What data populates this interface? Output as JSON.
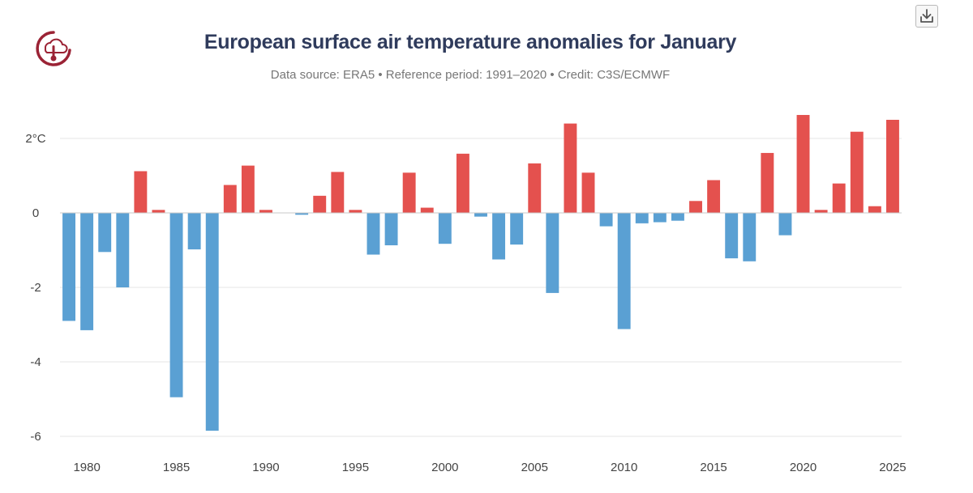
{
  "colors": {
    "positive": "#e4514e",
    "negative": "#5aa0d3",
    "title": "#2f3b5c",
    "logo": "#9b2335"
  },
  "icons": {
    "logo": "thermometer-cloud-icon",
    "download": "download-icon"
  },
  "chart_data": {
    "type": "bar",
    "title": "European surface air temperature anomalies for January",
    "subtitle": "Data source: ERA5 • Reference period: 1991–2020 • Credit: C3S/ECMWF",
    "xlabel": "",
    "ylabel": "",
    "ylim": [
      -6.2,
      2.9
    ],
    "yticks": [
      2,
      0,
      -2,
      -4,
      -6
    ],
    "ytick_labels": [
      "2°C",
      "0",
      "-2",
      "-4",
      "-6"
    ],
    "xticks": [
      1980,
      1985,
      1990,
      1995,
      2000,
      2005,
      2010,
      2015,
      2020,
      2025
    ],
    "xtick_labels": [
      "1980",
      "1985",
      "1990",
      "1995",
      "2000",
      "2005",
      "2010",
      "2015",
      "2020",
      "2025"
    ],
    "grid": true,
    "x": [
      1979,
      1980,
      1981,
      1982,
      1983,
      1984,
      1985,
      1986,
      1987,
      1988,
      1989,
      1990,
      1991,
      1992,
      1993,
      1994,
      1995,
      1996,
      1997,
      1998,
      1999,
      2000,
      2001,
      2002,
      2003,
      2004,
      2005,
      2006,
      2007,
      2008,
      2009,
      2010,
      2011,
      2012,
      2013,
      2014,
      2015,
      2016,
      2017,
      2018,
      2019,
      2020,
      2021,
      2022,
      2023,
      2024,
      2025
    ],
    "values": [
      -2.9,
      -3.15,
      -1.05,
      -2.0,
      1.12,
      0.08,
      -4.95,
      -0.98,
      -5.85,
      0.75,
      1.27,
      0.08,
      0.0,
      -0.05,
      0.46,
      1.1,
      0.08,
      -1.12,
      -0.87,
      1.08,
      0.14,
      -0.83,
      1.59,
      -0.1,
      -1.25,
      -0.85,
      1.33,
      -2.15,
      2.4,
      1.08,
      -0.36,
      -3.12,
      -0.28,
      -0.25,
      -0.21,
      0.32,
      0.88,
      -1.22,
      -1.3,
      1.61,
      -0.6,
      2.63,
      0.08,
      0.79,
      2.18,
      0.18,
      2.5
    ]
  }
}
